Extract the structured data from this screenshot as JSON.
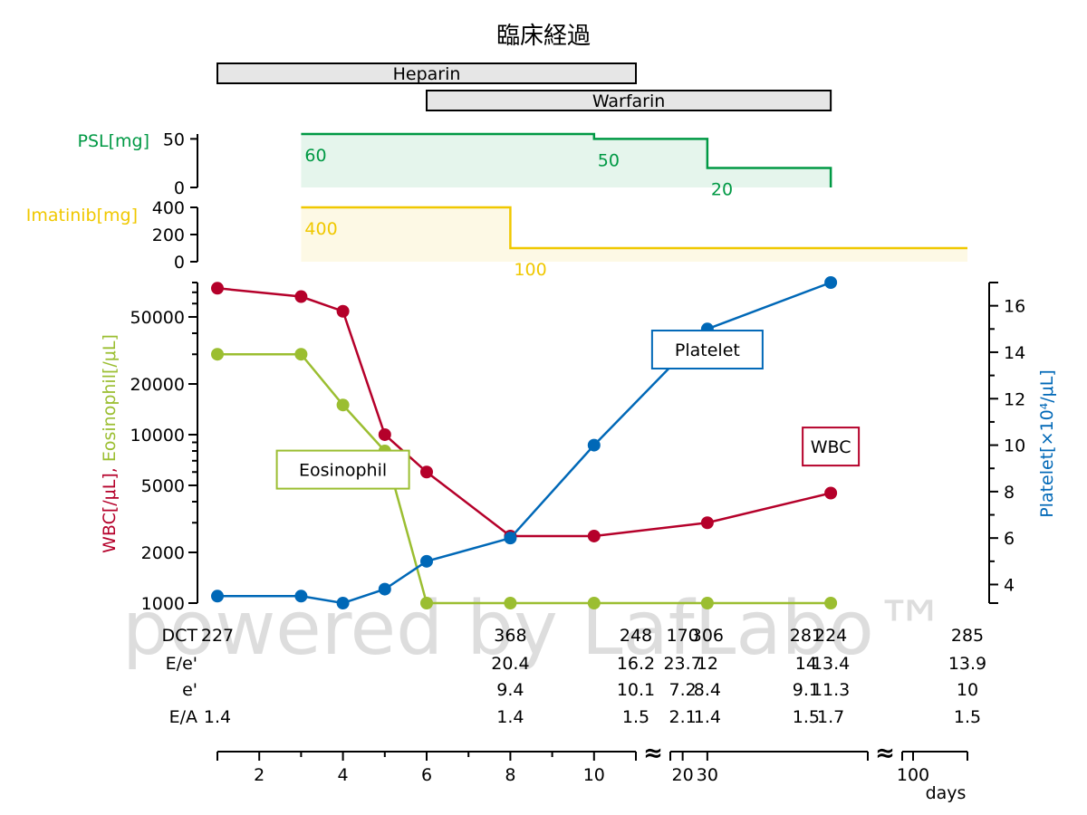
{
  "chart_data": {
    "type": "line",
    "title": "臨床経過",
    "watermark": "powered by LafLabo™",
    "x_axis": {
      "label": "days",
      "segments": [
        {
          "from": 1,
          "to": 11,
          "ticks": [
            2,
            4,
            6,
            8,
            10
          ]
        },
        {
          "from": 15,
          "to": 95,
          "ticks": [
            20,
            30
          ]
        },
        {
          "from": 98,
          "to": 110,
          "ticks": [
            100
          ]
        }
      ],
      "break_marker": "≈"
    },
    "therapy_bars": [
      {
        "name": "Heparin",
        "start": 1,
        "end": 11
      },
      {
        "name": "Warfarin",
        "start": 6,
        "end": 80
      }
    ],
    "dose_panels": [
      {
        "name": "PSL[mg]",
        "color": "#009944",
        "yticks": [
          0,
          50
        ],
        "ylim": [
          0,
          55
        ],
        "steps": [
          {
            "start": 3,
            "end": 10,
            "value": 60,
            "label": "60"
          },
          {
            "start": 10,
            "end": 30,
            "value": 50,
            "label": "50"
          },
          {
            "start": 30,
            "end": 80,
            "value": 20,
            "label": "20"
          }
        ],
        "end_day": 80
      },
      {
        "name": "Imatinib[mg]",
        "color": "#f0c800",
        "yticks": [
          0,
          200,
          400
        ],
        "ylim": [
          0,
          400
        ],
        "steps": [
          {
            "start": 3,
            "end": 8,
            "value": 400,
            "label": "400"
          },
          {
            "start": 8,
            "end": 110,
            "value": 100,
            "label": "100"
          }
        ]
      }
    ],
    "left_axis": {
      "label_parts": [
        {
          "text": "WBC[/μL]",
          "color": "#b5002a"
        },
        {
          "text": ", ",
          "color": "#b5002a"
        },
        {
          "text": "Eosinophil[/μL]",
          "color": "#9bbe31"
        }
      ],
      "scale": "log",
      "ylim": [
        1000,
        80000
      ],
      "tick_labels": [
        1000,
        2000,
        5000,
        10000,
        20000,
        50000
      ]
    },
    "right_axis": {
      "label": "Platelet[×10⁴/μL]",
      "color": "#0068b7",
      "ylim": [
        3.2,
        17.0
      ],
      "tick_labels": [
        4,
        6,
        8,
        10,
        12,
        14,
        16
      ]
    },
    "series": [
      {
        "name": "WBC",
        "axis": "left",
        "color": "#b5002a",
        "x": [
          1,
          3,
          4,
          5,
          6,
          8,
          10,
          30,
          80
        ],
        "values": [
          74000,
          66000,
          54000,
          10000,
          6000,
          2500,
          2500,
          3000,
          4500
        ]
      },
      {
        "name": "Eosinophil",
        "axis": "left",
        "color": "#9bbe31",
        "x": [
          1,
          3,
          4,
          5,
          6,
          8,
          10,
          30,
          80
        ],
        "values": [
          30000,
          30000,
          15000,
          8000,
          1000,
          1000,
          1000,
          1000,
          1000
        ]
      },
      {
        "name": "Platelet",
        "axis": "right",
        "color": "#0068b7",
        "x": [
          1,
          3,
          4,
          5,
          6,
          8,
          10,
          30,
          80
        ],
        "values": [
          3.5,
          3.5,
          3.2,
          3.8,
          5.0,
          6.0,
          10.0,
          15.0,
          17.0
        ]
      }
    ],
    "series_labels": [
      {
        "name": "Platelet",
        "x": 30,
        "value": 32000,
        "axis": "left"
      },
      {
        "name": "WBC",
        "x": 80,
        "value": 8500,
        "axis": "left"
      },
      {
        "name": "Eosinophil",
        "x": 4,
        "value": 6200,
        "axis": "left"
      }
    ],
    "table": {
      "row_labels": [
        "DCT",
        "E/e'",
        "e'",
        "E/A"
      ],
      "columns": [
        {
          "x": 1,
          "DCT": "227",
          "E/e'": "",
          "e'": "",
          "E/A": "1.4"
        },
        {
          "x": 8,
          "DCT": "368",
          "E/e'": "20.4",
          "e'": "9.4",
          "E/A": "1.4"
        },
        {
          "x": 11,
          "DCT": "248",
          "E/e'": "16.2",
          "e'": "10.1",
          "E/A": "1.5"
        },
        {
          "x": 20,
          "DCT": "170",
          "E/e'": "23.7",
          "e'": "7.2",
          "E/A": "2.1"
        },
        {
          "x": 30,
          "DCT": "306",
          "E/e'": "12",
          "e'": "8.4",
          "E/A": "1.4"
        },
        {
          "x": 70,
          "DCT": "281",
          "E/e'": "14",
          "e'": "9.1",
          "E/A": "1.5"
        },
        {
          "x": 80,
          "DCT": "224",
          "E/e'": "13.4",
          "e'": "11.3",
          "E/A": "1.7"
        },
        {
          "x": 110,
          "DCT": "285",
          "E/e'": "13.9",
          "e'": "10",
          "E/A": "1.5"
        }
      ]
    }
  }
}
